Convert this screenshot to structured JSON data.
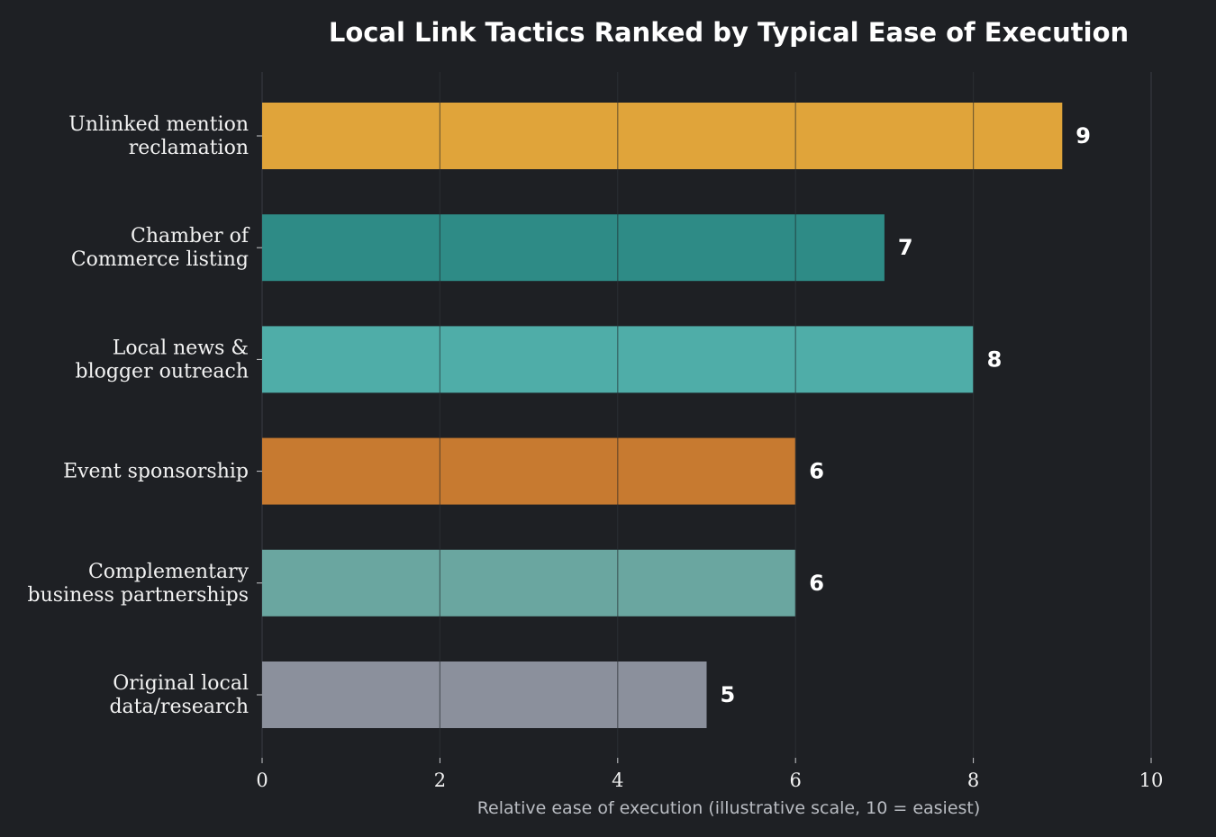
{
  "chart_data": {
    "type": "bar",
    "orientation": "horizontal",
    "title": "Local Link Tactics Ranked by Typical Ease of Execution",
    "xlabel": "Relative ease of execution (illustrative scale, 10 = easiest)",
    "ylabel": "",
    "xlim": [
      0,
      10
    ],
    "x_ticks": [
      "0",
      "2",
      "4",
      "6",
      "8",
      "10"
    ],
    "grid": "vertical",
    "categories": [
      [
        "Unlinked mention",
        "reclamation"
      ],
      [
        "Chamber of",
        "Commerce listing"
      ],
      [
        "Local news &",
        "blogger outreach"
      ],
      [
        "Event sponsorship"
      ],
      [
        "Complementary",
        "business partnerships"
      ],
      [
        "Original local",
        "data/research"
      ]
    ],
    "values": [
      9,
      7,
      8,
      6,
      6,
      5
    ],
    "value_labels": [
      "9",
      "7",
      "8",
      "6",
      "6",
      "5"
    ],
    "bar_colors": [
      "#e0a43a",
      "#2e8b86",
      "#4fada8",
      "#c77a30",
      "#6aa6a0",
      "#8b909c"
    ]
  }
}
